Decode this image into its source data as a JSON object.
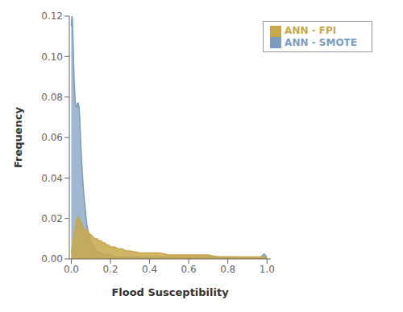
{
  "chart_data": {
    "type": "area",
    "xlabel": "Flood Susceptibility",
    "ylabel": "Frequency",
    "xlim": [
      -0.01,
      1.02
    ],
    "ylim": [
      0,
      0.12
    ],
    "xticks": [
      {
        "value": 0.0,
        "label": "0.0"
      },
      {
        "value": 0.2,
        "label": "0.2"
      },
      {
        "value": 0.4,
        "label": "0.4"
      },
      {
        "value": 0.6,
        "label": "0.6"
      },
      {
        "value": 0.8,
        "label": "0.8"
      },
      {
        "value": 1.0,
        "label": "1.0"
      }
    ],
    "yticks": [
      {
        "value": 0.0,
        "label": "0.00"
      },
      {
        "value": 0.02,
        "label": "0.02"
      },
      {
        "value": 0.04,
        "label": "0.04"
      },
      {
        "value": 0.06,
        "label": "0.06"
      },
      {
        "value": 0.08,
        "label": "0.08"
      },
      {
        "value": 0.1,
        "label": "0.10"
      },
      {
        "value": 0.12,
        "label": "0.12"
      }
    ],
    "grid": false,
    "legend": "upper right",
    "series": [
      {
        "name": "ANN - SMOTE",
        "color": "#7b9cbf",
        "x": [
          0.0,
          0.002,
          0.004,
          0.006,
          0.008,
          0.01,
          0.012,
          0.015,
          0.018,
          0.02,
          0.022,
          0.025,
          0.028,
          0.03,
          0.032,
          0.035,
          0.038,
          0.04,
          0.043,
          0.046,
          0.05,
          0.055,
          0.06,
          0.065,
          0.07,
          0.075,
          0.08,
          0.085,
          0.09,
          0.1,
          0.11,
          0.12,
          0.13,
          0.14,
          0.15,
          0.16,
          0.17,
          0.18,
          0.19,
          0.2,
          0.22,
          0.24,
          0.26,
          0.28,
          0.3,
          0.35,
          0.4,
          0.45,
          0.5,
          0.55,
          0.6,
          0.65,
          0.7,
          0.75,
          0.8,
          0.85,
          0.9,
          0.94,
          0.96,
          0.97,
          0.975,
          0.98,
          0.985,
          0.99,
          0.995,
          1.0
        ],
        "values": [
          0.115,
          0.118,
          0.12,
          0.118,
          0.112,
          0.105,
          0.097,
          0.088,
          0.082,
          0.078,
          0.076,
          0.075,
          0.075,
          0.076,
          0.077,
          0.077,
          0.076,
          0.075,
          0.07,
          0.063,
          0.054,
          0.045,
          0.037,
          0.031,
          0.026,
          0.021,
          0.017,
          0.014,
          0.012,
          0.009,
          0.007,
          0.005,
          0.004,
          0.003,
          0.003,
          0.003,
          0.002,
          0.002,
          0.002,
          0.002,
          0.001,
          0.001,
          0.001,
          0.001,
          0.001,
          0.001,
          0.001,
          0.001,
          0.001,
          0.001,
          0.001,
          0.001,
          0.001,
          0.001,
          0.001,
          0.001,
          0.0005,
          0.0005,
          0.001,
          0.001,
          0.0015,
          0.002,
          0.0025,
          0.002,
          0.0015,
          0.001
        ]
      },
      {
        "name": "ANN - FPI",
        "color": "#c8a84b",
        "x": [
          0.0,
          0.005,
          0.01,
          0.015,
          0.02,
          0.025,
          0.03,
          0.035,
          0.04,
          0.045,
          0.05,
          0.055,
          0.06,
          0.065,
          0.07,
          0.075,
          0.08,
          0.085,
          0.09,
          0.095,
          0.1,
          0.11,
          0.12,
          0.13,
          0.14,
          0.15,
          0.16,
          0.17,
          0.18,
          0.19,
          0.2,
          0.22,
          0.24,
          0.26,
          0.28,
          0.3,
          0.35,
          0.4,
          0.45,
          0.5,
          0.55,
          0.6,
          0.65,
          0.7,
          0.75,
          0.8,
          0.85,
          0.9,
          0.92,
          0.94,
          0.96,
          0.97,
          0.975,
          0.98,
          0.985,
          0.99,
          0.995,
          1.0
        ],
        "values": [
          0.003,
          0.006,
          0.009,
          0.012,
          0.015,
          0.018,
          0.02,
          0.021,
          0.02,
          0.019,
          0.018,
          0.017,
          0.016,
          0.015,
          0.015,
          0.014,
          0.014,
          0.013,
          0.013,
          0.012,
          0.012,
          0.011,
          0.01,
          0.01,
          0.009,
          0.009,
          0.008,
          0.008,
          0.007,
          0.007,
          0.006,
          0.006,
          0.005,
          0.005,
          0.004,
          0.004,
          0.003,
          0.003,
          0.003,
          0.002,
          0.002,
          0.002,
          0.002,
          0.002,
          0.001,
          0.001,
          0.001,
          0.001,
          0.001,
          0.001,
          0.001,
          0.001,
          0.001,
          0.001,
          0.001,
          0.001,
          0.0005,
          0.0
        ]
      }
    ]
  }
}
